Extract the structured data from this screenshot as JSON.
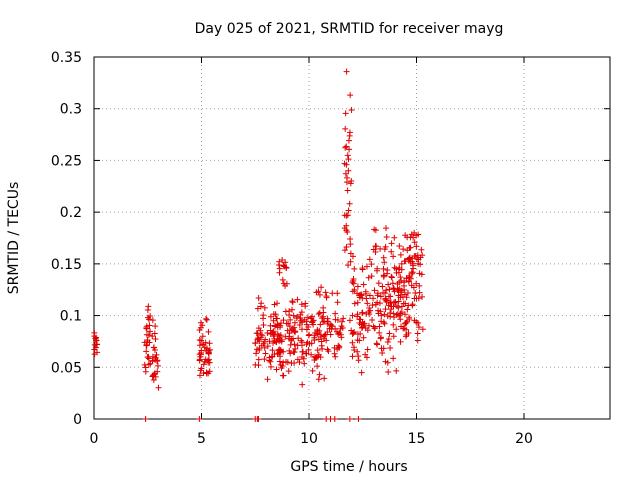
{
  "chart_data": {
    "type": "scatter",
    "title": "Day 025 of 2021, SRMTID for receiver mayg",
    "xlabel": "GPS time / hours",
    "ylabel": "SRMTID / TECUs",
    "xlim": [
      0,
      24
    ],
    "ylim": [
      0,
      0.35
    ],
    "xticks": [
      0,
      5,
      10,
      15,
      20
    ],
    "xtick_labels": [
      "0",
      "5",
      "10",
      "15",
      "20"
    ],
    "yticks": [
      0,
      0.05,
      0.1,
      0.15,
      0.2,
      0.25,
      0.3,
      0.35
    ],
    "ytick_labels": [
      "0",
      "0.05",
      "0.1",
      "0.15",
      "0.2",
      "0.25",
      "0.3",
      "0.35"
    ],
    "grid": true,
    "marker": "+",
    "marker_color": "#e00000",
    "series": [
      {
        "name": "SRMTID",
        "clusters": [
          {
            "x": [
              0.0,
              0.15
            ],
            "y": [
              0.06,
              0.086
            ],
            "n": 14
          },
          {
            "x": [
              2.35,
              2.65
            ],
            "y": [
              0.035,
              0.125
            ],
            "n": 28
          },
          {
            "x": [
              2.7,
              3.0
            ],
            "y": [
              0.02,
              0.1
            ],
            "n": 26
          },
          {
            "x": [
              4.9,
              5.4
            ],
            "y": [
              0.03,
              0.1
            ],
            "n": 45
          },
          {
            "x": [
              7.5,
              9.0
            ],
            "y": [
              0.035,
              0.12
            ],
            "n": 110
          },
          {
            "x": [
              8.6,
              9.0
            ],
            "y": [
              0.12,
              0.17
            ],
            "n": 14
          },
          {
            "x": [
              9.0,
              10.8
            ],
            "y": [
              0.03,
              0.13
            ],
            "n": 130
          },
          {
            "x": [
              10.8,
              11.6
            ],
            "y": [
              0.05,
              0.13
            ],
            "n": 40
          },
          {
            "x": [
              11.65,
              12.0
            ],
            "y": [
              0.07,
              0.35
            ],
            "n": 40
          },
          {
            "x": [
              12.0,
              12.9
            ],
            "y": [
              0.04,
              0.16
            ],
            "n": 70
          },
          {
            "x": [
              12.9,
              14.2
            ],
            "y": [
              0.04,
              0.19
            ],
            "n": 120
          },
          {
            "x": [
              14.2,
              15.3
            ],
            "y": [
              0.07,
              0.195
            ],
            "n": 110
          }
        ],
        "zero_points_x": [
          2.4,
          4.9,
          7.5,
          7.6,
          7.65,
          10.8,
          11.0,
          11.2,
          11.9,
          12.3
        ]
      }
    ]
  }
}
